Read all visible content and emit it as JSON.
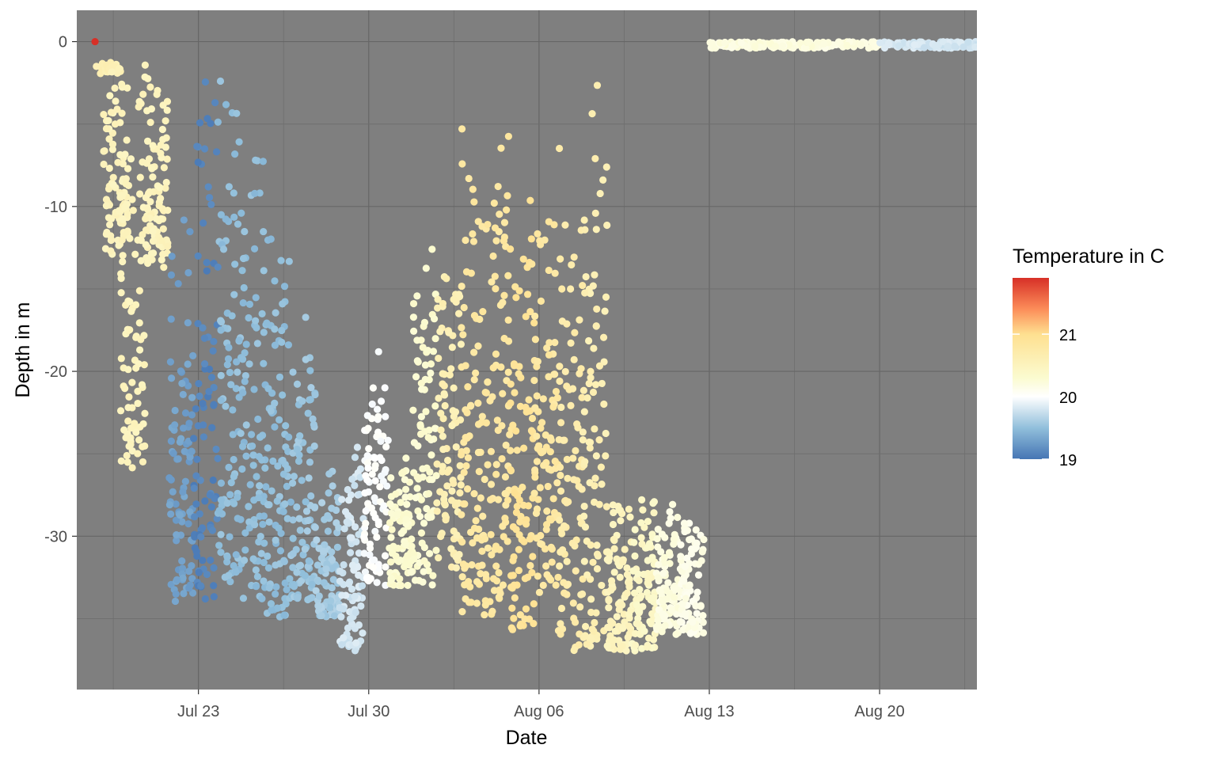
{
  "chart_data": {
    "type": "scatter",
    "title": "",
    "xlabel": "Date",
    "ylabel": "Depth in m",
    "x_ticks": [
      "Jul 23",
      "Jul 30",
      "Aug 06",
      "Aug 13",
      "Aug 20"
    ],
    "y_ticks": [
      "0",
      "-10",
      "-20",
      "-30"
    ],
    "xlim": [
      "2023-07-18",
      "2023-08-24"
    ],
    "ylim": [
      -39.3,
      1.9
    ],
    "grid": true,
    "panel_background": "#7f7f7f",
    "color_scale": {
      "name": "Temperature in C",
      "min": 19,
      "max": 21.9,
      "breaks": [
        19,
        20,
        21
      ],
      "stops": [
        {
          "value": 19.0,
          "color": "#4575b4"
        },
        {
          "value": 19.5,
          "color": "#91bfdb"
        },
        {
          "value": 20.0,
          "color": "#ffffff"
        },
        {
          "value": 20.3,
          "color": "#fbfbd0"
        },
        {
          "value": 21.0,
          "color": "#fee090"
        },
        {
          "value": 21.4,
          "color": "#fc8d59"
        },
        {
          "value": 21.9,
          "color": "#d73027"
        }
      ]
    },
    "legend_position": "right",
    "approximate_data_clusters": [
      {
        "date": "2023-07-19",
        "depth_min": -2,
        "depth_max": -1,
        "temp": 20.6,
        "density": 0.3
      },
      {
        "date": "2023-07-19.3",
        "depth_min": -13,
        "depth_max": -1,
        "temp": 20.5,
        "density": 1
      },
      {
        "date": "2023-07-20",
        "depth_min": -26,
        "depth_max": -1,
        "temp": 20.5,
        "density": 1
      },
      {
        "date": "2023-07-21",
        "depth_min": -14,
        "depth_max": -1,
        "temp": 20.5,
        "density": 1
      },
      {
        "date": "2023-07-22",
        "depth_min": -34,
        "depth_max": -9,
        "temp": 19.3,
        "density": 1
      },
      {
        "date": "2023-07-23",
        "depth_min": -34,
        "depth_max": -1.5,
        "temp": 19.1,
        "density": 1
      },
      {
        "date": "2023-07-24",
        "depth_min": -33,
        "depth_max": -1.5,
        "temp": 19.5,
        "density": 1
      },
      {
        "date": "2023-07-25",
        "depth_min": -34,
        "depth_max": -4,
        "temp": 19.5,
        "density": 1
      },
      {
        "date": "2023-07-26",
        "depth_min": -35,
        "depth_max": -11,
        "temp": 19.5,
        "density": 1
      },
      {
        "date": "2023-07-27",
        "depth_min": -34,
        "depth_max": -16,
        "temp": 19.55,
        "density": 1
      },
      {
        "date": "2023-07-28",
        "depth_min": -35,
        "depth_max": -25,
        "temp": 19.6,
        "density": 1
      },
      {
        "date": "2023-07-29",
        "depth_min": -37,
        "depth_max": -24,
        "temp": 19.8,
        "density": 1
      },
      {
        "date": "2023-07-30",
        "depth_min": -33,
        "depth_max": -18,
        "temp": 20.0,
        "density": 1
      },
      {
        "date": "2023-07-31",
        "depth_min": -33,
        "depth_max": -25,
        "temp": 20.3,
        "density": 1
      },
      {
        "date": "2023-08-01",
        "depth_min": -33,
        "depth_max": -10.5,
        "temp": 20.3,
        "density": 1
      },
      {
        "date": "2023-08-02",
        "depth_min": -32,
        "depth_max": -13,
        "temp": 20.6,
        "density": 1
      },
      {
        "date": "2023-08-03",
        "depth_min": -35,
        "depth_max": -4,
        "temp": 20.8,
        "density": 1
      },
      {
        "date": "2023-08-04",
        "depth_min": -35,
        "depth_max": -4,
        "temp": 20.8,
        "density": 1
      },
      {
        "date": "2023-08-05",
        "depth_min": -36,
        "depth_max": -7.5,
        "temp": 20.9,
        "density": 1
      },
      {
        "date": "2023-08-06",
        "depth_min": -34,
        "depth_max": -7.5,
        "temp": 20.8,
        "density": 1
      },
      {
        "date": "2023-08-07",
        "depth_min": -37,
        "depth_max": -5,
        "temp": 20.7,
        "density": 1
      },
      {
        "date": "2023-08-08",
        "depth_min": -37,
        "depth_max": -0.5,
        "temp": 20.6,
        "density": 1
      },
      {
        "date": "2023-08-09",
        "depth_min": -37,
        "depth_max": -27,
        "temp": 20.5,
        "density": 1
      },
      {
        "date": "2023-08-10",
        "depth_min": -37,
        "depth_max": -27,
        "temp": 20.4,
        "density": 1
      },
      {
        "date": "2023-08-11",
        "depth_min": -36,
        "depth_max": -28,
        "temp": 20.2,
        "density": 1
      },
      {
        "date": "2023-08-12",
        "depth_min": -36,
        "depth_max": -28,
        "temp": 20.15,
        "density": 1
      },
      {
        "date": "2023-08-13",
        "depth_min": -0.4,
        "depth_max": 0,
        "temp": 20.2,
        "density": 1
      },
      {
        "date": "2023-08-20",
        "depth_min": -0.4,
        "depth_max": 0,
        "temp": 19.8,
        "density": 1
      }
    ]
  }
}
